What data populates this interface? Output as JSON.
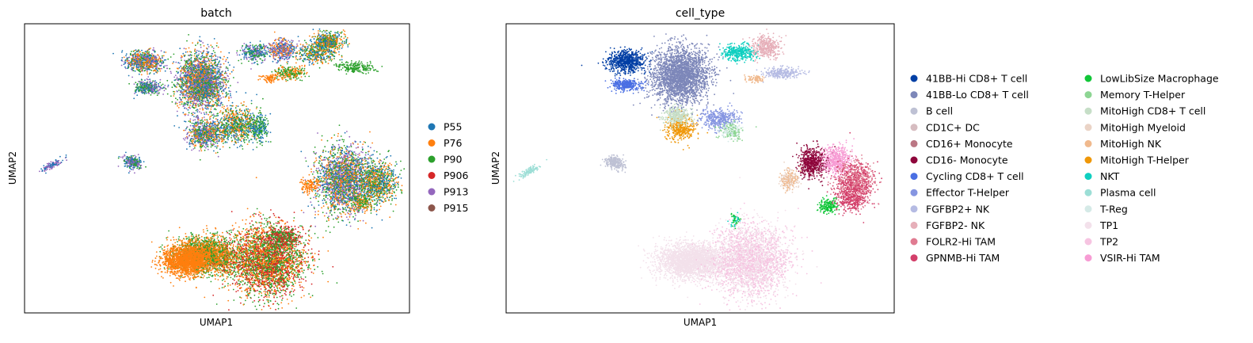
{
  "chart_data": [
    {
      "type": "scatter",
      "title": "batch",
      "xlabel": "UMAP1",
      "ylabel": "UMAP2",
      "grid": false,
      "legend": "right",
      "series": [
        {
          "name": "P55",
          "color": "#1f77b4"
        },
        {
          "name": "P76",
          "color": "#ff7f0e"
        },
        {
          "name": "P90",
          "color": "#2ca02c"
        },
        {
          "name": "P906",
          "color": "#d62728"
        },
        {
          "name": "P913",
          "color": "#9467bd"
        },
        {
          "name": "P915",
          "color": "#8c564b"
        }
      ],
      "clusters": [
        {
          "cx": 0.07,
          "cy": 0.18,
          "rx": 0.3,
          "ry": 0.08,
          "a": -0.75,
          "colors": [
            "#9467bd",
            "#1f77b4"
          ]
        },
        {
          "cx": 0.28,
          "cy": 0.54,
          "rx": 0.31,
          "ry": 0.09,
          "a": -0.7,
          "colors": [
            "#9467bd",
            "#1f77b4",
            "#2ca02c"
          ]
        },
        {
          "cx": 0.45,
          "cy": 0.85,
          "rx": 0.3,
          "ry": 0.24,
          "a": 0,
          "colors": [
            "#1f77b4",
            "#ff7f0e",
            "#2ca02c",
            "#9467bd"
          ]
        },
        {
          "cx": 0.51,
          "cy": 0.74,
          "rx": 0.47,
          "ry": 0.4,
          "a": 0,
          "colors": [
            "#ff7f0e",
            "#2ca02c",
            "#1f77b4",
            "#9467bd",
            "#d62728"
          ]
        },
        {
          "cx": 0.7,
          "cy": 0.8,
          "rx": 0.48,
          "ry": 0.34,
          "a": 0,
          "colors": [
            "#2ca02c",
            "#ff7f0e",
            "#1f77b4"
          ]
        },
        {
          "cx": 0.55,
          "cy": 0.58,
          "rx": 0.55,
          "ry": 0.55,
          "a": 0,
          "colors": [
            "#2ca02c",
            "#ff7f0e",
            "#1f77b4",
            "#9467bd"
          ]
        },
        {
          "cx": 0.63,
          "cy": 0.72,
          "rx": 0.3,
          "ry": 0.25,
          "a": 0,
          "colors": [
            "#2ca02c",
            "#1f77b4"
          ]
        },
        {
          "cx": 0.65,
          "cy": 0.52,
          "rx": 0.2,
          "ry": 0.2,
          "a": 0,
          "colors": [
            "#2ca02c",
            "#1f77b4"
          ]
        },
        {
          "cx": 0.58,
          "cy": 0.8,
          "rx": 0.22,
          "ry": 0.25,
          "a": 0,
          "colors": [
            "#9467bd",
            "#1f77b4",
            "#ff7f0e"
          ]
        },
        {
          "cx": 0.3,
          "cy": 0.9,
          "rx": 0.2,
          "ry": 0.2,
          "a": 0,
          "colors": [
            "#9467bd",
            "#1f77b4",
            "#ff7f0e",
            "#2ca02c"
          ]
        },
        {
          "cx": 0.34,
          "cy": 0.63,
          "rx": 0.26,
          "ry": 0.2,
          "a": 0,
          "colors": [
            "#2ca02c",
            "#ff7f0e",
            "#1f77b4"
          ]
        },
        {
          "cx": 0.7,
          "cy": 0.9,
          "rx": 0.28,
          "ry": 0.22,
          "a": 0,
          "colors": [
            "#2ca02c",
            "#1f77b4",
            "#ff7f0e"
          ]
        },
        {
          "cx": 0.57,
          "cy": 0.15,
          "rx": 0.4,
          "ry": 0.25,
          "a": 0,
          "colors": [
            "#2ca02c",
            "#1f77b4"
          ]
        },
        {
          "cx": 0.4,
          "cy": 0.4,
          "rx": 0.3,
          "ry": 0.18,
          "a": 0,
          "colors": [
            "#ff7f0e",
            "#2ca02c"
          ]
        },
        {
          "cx": 0.68,
          "cy": 0.3,
          "rx": 0.22,
          "ry": 0.23,
          "a": 0,
          "colors": [
            "#2ca02c",
            "#ff7f0e",
            "#1f77b4"
          ]
        },
        {
          "cx": 0.73,
          "cy": 0.25,
          "rx": 0.6,
          "ry": 0.4,
          "a": 0,
          "colors": [
            "#2ca02c",
            "#ff7f0e"
          ]
        },
        {
          "cx": 0.29,
          "cy": 0.43,
          "rx": 0.5,
          "ry": 0.4,
          "a": 0,
          "colors": [
            "#ff7f0e",
            "#2ca02c"
          ]
        }
      ]
    },
    {
      "type": "scatter",
      "title": "cell_type",
      "xlabel": "UMAP1",
      "ylabel": "UMAP2",
      "grid": false,
      "legend": "right",
      "series": [
        {
          "name": "41BB-Hi CD8+ T cell",
          "color": "#023fa5"
        },
        {
          "name": "41BB-Lo CD8+ T cell",
          "color": "#7d87b9"
        },
        {
          "name": "B cell",
          "color": "#bec1d4"
        },
        {
          "name": "CD1C+ DC",
          "color": "#d6bcc0"
        },
        {
          "name": "CD16+ Monocyte",
          "color": "#bb7784"
        },
        {
          "name": "CD16- Monocyte",
          "color": "#8e063b"
        },
        {
          "name": "Cycling CD8+ T cell",
          "color": "#4a6fe3"
        },
        {
          "name": "Effector T-Helper",
          "color": "#8595e1"
        },
        {
          "name": "FGFBP2+ NK",
          "color": "#b5bbe3"
        },
        {
          "name": "FGFBP2- NK",
          "color": "#e6afb9"
        },
        {
          "name": "FOLR2-Hi TAM",
          "color": "#e07b91"
        },
        {
          "name": "GPNMB-Hi TAM",
          "color": "#d33f6a"
        },
        {
          "name": "LowLibSize Macrophage",
          "color": "#11c638"
        },
        {
          "name": "Memory T-Helper",
          "color": "#8dd593"
        },
        {
          "name": "MitoHigh CD8+ T cell",
          "color": "#c6dec7"
        },
        {
          "name": "MitoHigh Myeloid",
          "color": "#ead3c6"
        },
        {
          "name": "MitoHigh NK",
          "color": "#f0b98d"
        },
        {
          "name": "MitoHigh T-Helper",
          "color": "#ef9708"
        },
        {
          "name": "NKT",
          "color": "#0fcfc0"
        },
        {
          "name": "Plasma cell",
          "color": "#9cded6"
        },
        {
          "name": "T-Reg",
          "color": "#d5eae7"
        },
        {
          "name": "TP1",
          "color": "#f3e1eb"
        },
        {
          "name": "TP2",
          "color": "#f6c4e1"
        },
        {
          "name": "VSIR-Hi TAM",
          "color": "#f79cd4"
        }
      ]
    }
  ]
}
